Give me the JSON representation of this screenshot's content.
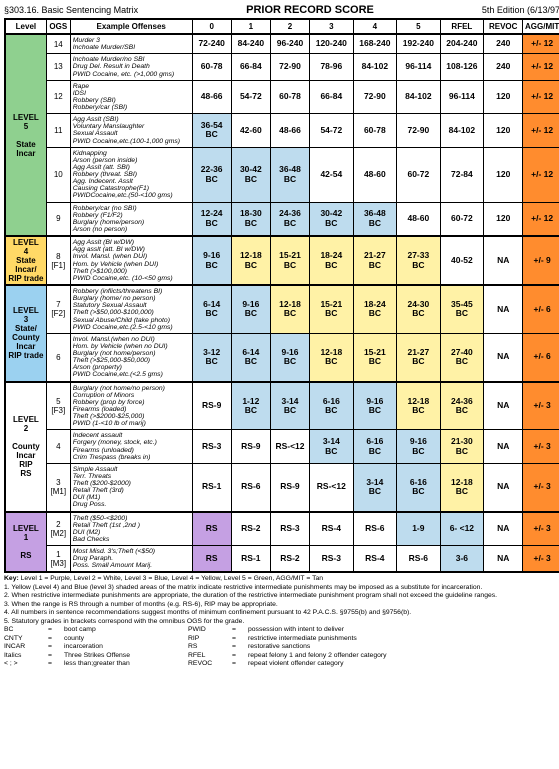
{
  "header": {
    "section": "§303.16.  Basic Sentencing Matrix",
    "title": "PRIOR RECORD SCORE",
    "edition": "5th Edition (6/13/97)"
  },
  "colheads": [
    "Level",
    "OGS",
    "Example Offenses",
    "0",
    "1",
    "2",
    "3",
    "4",
    "5",
    "RFEL",
    "REVOC",
    "AGG/MIT"
  ],
  "rows": [
    {
      "level": "LEVEL\n5\n\nState\nIncar",
      "lvlcls": "lvl5",
      "lvlspan": 6,
      "ogs": "14",
      "off": "Murder 3\nInchoate Murder/SBI",
      "offcls": "plain italic",
      "cells": [
        "72-240",
        "84-240",
        "96-240",
        "120-240",
        "168-240",
        "192-240",
        "204-240",
        "240",
        "+/- 12"
      ],
      "rowcolor": "bg-white",
      "agg": true,
      "top": true
    },
    {
      "ogs": "13",
      "off": "Inchoate Murder/no SBI\nDrug Del. Result in Death\nPWID Cocaine, etc. (>1,000 gms)",
      "cells": [
        "60-78",
        "66-84",
        "72-90",
        "78-96",
        "84-102",
        "96-114",
        "108-126",
        "240",
        "+/- 12"
      ],
      "rowcolor": "bg-white",
      "agg": true
    },
    {
      "ogs": "12",
      "off": "Rape\nIDSI\nRobbery (SBI)\nRobbery/car (SBI)",
      "cells": [
        "48-66",
        "54-72",
        "60-78",
        "66-84",
        "72-90",
        "84-102",
        "96-114",
        "120",
        "+/- 12"
      ],
      "rowcolor": "bg-white",
      "agg": true
    },
    {
      "ogs": "11",
      "off": "Agg Asslt (SBI)\nVoluntary Manslaughter\nSexual Assault\nPWID Cocaine,etc.(100-1,000 gms)",
      "cells": [
        "36-54\nBC",
        "42-60",
        "48-66",
        "54-72",
        "60-78",
        "72-90",
        "84-102",
        "120",
        "+/- 12"
      ],
      "rowcolor": "bg-white",
      "agg": true,
      "cellcolors": [
        "bg-blue",
        "",
        "",
        "",
        "",
        "",
        "",
        "",
        ""
      ]
    },
    {
      "ogs": "10",
      "off": "Kidnapping\nArson (person inside)\nAgg Asslt (att. SBI)\nRobbery (threat. SBI)\nAgg. Indecent. Asslt\nCausing Catastrophe(F1)\nPWIDCocaine,etc.(50-<100 gms)",
      "cells": [
        "22-36\nBC",
        "30-42\nBC",
        "36-48\nBC",
        "42-54",
        "48-60",
        "60-72",
        "72-84",
        "120",
        "+/- 12"
      ],
      "rowcolor": "bg-white",
      "agg": true,
      "cellcolors": [
        "bg-blue",
        "bg-blue",
        "bg-blue",
        "",
        "",
        "",
        "",
        "",
        ""
      ]
    },
    {
      "ogs": "9",
      "off": "Robbery/car (no SBI)\nRobbery (F1/F2)\nBurglary (home/person)\nArson (no person)",
      "cells": [
        "12-24\nBC",
        "18-30\nBC",
        "24-36\nBC",
        "30-42\nBC",
        "36-48\nBC",
        "48-60",
        "60-72",
        "120",
        "+/- 12"
      ],
      "rowcolor": "bg-white",
      "agg": true,
      "cellcolors": [
        "bg-blue",
        "bg-blue",
        "bg-blue",
        "bg-blue",
        "bg-blue",
        "",
        "",
        "",
        ""
      ],
      "bot": true
    },
    {
      "level": "LEVEL\n4\nState\nIncar/\nRIP trade",
      "lvlcls": "lvl4",
      "lvlspan": 1,
      "ogs": "8\n[F1]",
      "off": "Agg Asslt (BI w/DW)\nAgg asslt (att. BI w/DW)\nInvol. Mansl. (when DUI)\nHom. by Vehicle (when DUI)\nTheft (>$100,000)\nPWID Cocaine,etc. (10-<50 gms)",
      "cells": [
        "9-16\nBC",
        "12-18\nBC",
        "15-21\nBC",
        "18-24\nBC",
        "21-27\nBC",
        "27-33\nBC",
        "40-52",
        "NA",
        "+/- 9"
      ],
      "agg": true,
      "cellcolors": [
        "bg-blue",
        "bg-yellow",
        "bg-yellow",
        "bg-yellow",
        "bg-yellow",
        "bg-yellow",
        "",
        "",
        ""
      ],
      "top": true,
      "bot": true
    },
    {
      "level": "LEVEL\n3\nState/\nCounty\nIncar\nRIP trade",
      "lvlcls": "lvl3",
      "lvlspan": 2,
      "ogs": "7\n[F2]",
      "off": "Robbery (inflicts/threatens BI)\nBurglary (home/ no person)\nStatutory Sexual Assault\nTheft (>$50,000-$100,000)\nSexual Abuse/Child (take photo)\nPWID Cocaine,etc.(2.5-<10 gms)",
      "cells": [
        "6-14\nBC",
        "9-16\nBC",
        "12-18\nBC",
        "15-21\nBC",
        "18-24\nBC",
        "24-30\nBC",
        "35-45\nBC",
        "NA",
        "+/- 6"
      ],
      "agg": true,
      "cellcolors": [
        "bg-blue",
        "bg-blue",
        "bg-yellow",
        "bg-yellow",
        "bg-yellow",
        "bg-yellow",
        "bg-yellow",
        "",
        ""
      ],
      "top": true
    },
    {
      "ogs": "6",
      "off": "Invol. Mansl.(when  no DUI)\nHom. by Vehicle (when no DUI)\nBurglary (not home/person)\nTheft (>$25,000-$50,000)\nArson (property)\nPWID Cocaine,etc.(<2.5 gms)",
      "cells": [
        "3-12\nBC",
        "6-14\nBC",
        "9-16\nBC",
        "12-18\nBC",
        "15-21\nBC",
        "21-27\nBC",
        "27-40\nBC",
        "NA",
        "+/- 6"
      ],
      "agg": true,
      "cellcolors": [
        "bg-blue",
        "bg-blue",
        "bg-blue",
        "bg-yellow",
        "bg-yellow",
        "bg-yellow",
        "bg-yellow",
        "",
        ""
      ],
      "bot": true
    },
    {
      "level": "LEVEL\n2\n\nCounty\nIncar\nRIP\nRS",
      "lvlcls": "lvl2",
      "lvlspan": 3,
      "ogs": "5\n[F3]",
      "off": "Burglary (not home/no person)\nCorruption of Minors\nRobbery (prop by force)\nFirearms (loaded)\nTheft (>$2000-$25,000)\nPWID (1-<10 lb of marij)",
      "cells": [
        "RS-9",
        "1-12\nBC",
        "3-14\nBC",
        "6-16\nBC",
        "9-16\nBC",
        "12-18\nBC",
        "24-36\nBC",
        "NA",
        "+/- 3"
      ],
      "agg": true,
      "cellcolors": [
        "",
        "bg-blue",
        "bg-blue",
        "bg-blue",
        "bg-blue",
        "bg-yellow",
        "bg-yellow",
        "",
        ""
      ],
      "top": true
    },
    {
      "ogs": "4",
      "off": "Indecent assault\nForgery (money, stock, etc.)\nFirearms (unloaded)\nCrim Trespass (breaks in)",
      "cells": [
        "RS-3",
        "RS-9",
        "RS-<12",
        "3-14\nBC",
        "6-16\nBC",
        "9-16\nBC",
        "21-30\nBC",
        "NA",
        "+/- 3"
      ],
      "agg": true,
      "cellcolors": [
        "",
        "",
        "",
        "bg-blue",
        "bg-blue",
        "bg-blue",
        "bg-yellow",
        "",
        ""
      ]
    },
    {
      "ogs": "3\n[M1]",
      "off": "Simple Assault\nTerr. Threats\nTheft ($200-$2000)\nRetail Theft (3rd)\nDUI (M1)\nDrug Poss.",
      "cells": [
        "RS-1",
        "RS-6",
        "RS-9",
        "RS-<12",
        "3-14\nBC",
        "6-16\nBC",
        "12-18\nBC",
        "NA",
        "+/- 3"
      ],
      "agg": true,
      "cellcolors": [
        "",
        "",
        "",
        "",
        "bg-blue",
        "bg-blue",
        "bg-yellow",
        "",
        ""
      ],
      "bot": true
    },
    {
      "level": "LEVEL\n1\n\nRS",
      "lvlcls": "lvl1",
      "lvlspan": 2,
      "ogs": "2\n[M2]",
      "off": "Theft ($50-<$200)\nRetail Theft (1st ,2nd )\nDUI (M2)\nBad Checks",
      "cells": [
        "RS",
        "RS-2",
        "RS-3",
        "RS-4",
        "RS-6",
        "1-9",
        "6- <12",
        "NA",
        "+/- 3"
      ],
      "agg": true,
      "cellcolors": [
        "bg-purple",
        "",
        "",
        "",
        "",
        "bg-blue",
        "bg-blue",
        "",
        ""
      ],
      "top": true
    },
    {
      "ogs": "1\n[M3]",
      "off": "Most Misd. 3's;Theft (<$50)\nDrug Paraph.\nPoss. Small Amount Marij.",
      "cells": [
        "RS",
        "RS-1",
        "RS-2",
        "RS-3",
        "RS-4",
        "RS-6",
        "3-6",
        "NA",
        "+/- 3"
      ],
      "agg": true,
      "cellcolors": [
        "bg-purple",
        "",
        "",
        "",
        "",
        "",
        "bg-blue",
        "",
        ""
      ],
      "bot": true
    }
  ],
  "key": {
    "keyline": "Key: Level 1 = Purple, Level 2 = White, Level 3 = Blue, Level 4 = Yellow, Level 5 = Green, AGG/MIT = Tan",
    "notes": [
      "1. Yellow (Level 4) and Blue (level 3) shaded areas of the matrix indicate restrictive intermediate punishments may be imposed as a substitute for incarceration.",
      "2. When restrictive intermediate punishments are appropriate, the duration of the restrictive intermediate punishment program shall not exceed the guideline ranges.",
      "3. When the range is RS through a number of months (e.g. RS-6), RIP may be appropriate.",
      "4. All numbers in sentence recommendations suggest months of minimum confinement pursuant to 42 P.A.C.S. §9755(b) and §9756(b).",
      "5. Statutory grades in brackets correspond with the omnibus OGS for the grade."
    ],
    "abbr": [
      [
        "BC",
        "boot camp",
        "PWID",
        "possession with intent to deliver"
      ],
      [
        "CNTY",
        "county",
        "RIP",
        "restrictive intermediate punishments"
      ],
      [
        "INCAR",
        "incarceration",
        "RS",
        "restorative sanctions"
      ],
      [
        "Italics",
        "Three Strikes Offense",
        "RFEL",
        "repeat felony 1 and felony 2 offender category"
      ],
      [
        "< ; >",
        "less than;greater than",
        "REVOC",
        "repeat violent offender category"
      ]
    ]
  }
}
